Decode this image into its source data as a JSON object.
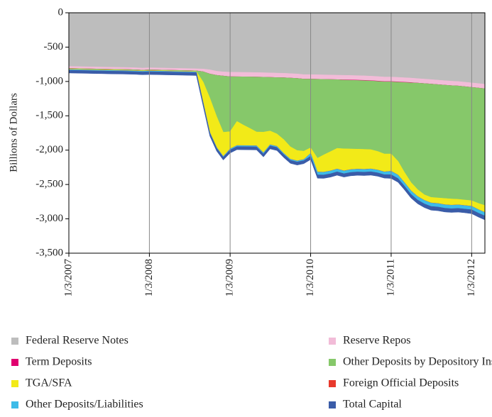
{
  "chart_data": {
    "type": "stacked_area",
    "ylabel": "Billions of Dollars",
    "x": [
      "1/3/2007",
      "2/3/2007",
      "3/3/2007",
      "4/3/2007",
      "5/3/2007",
      "6/3/2007",
      "7/3/2007",
      "8/3/2007",
      "9/3/2007",
      "10/3/2007",
      "11/3/2007",
      "12/3/2007",
      "1/3/2008",
      "2/3/2008",
      "3/3/2008",
      "4/3/2008",
      "5/3/2008",
      "6/3/2008",
      "7/3/2008",
      "8/3/2008",
      "9/3/2008",
      "10/3/2008",
      "11/3/2008",
      "12/3/2008",
      "1/3/2009",
      "2/3/2009",
      "3/3/2009",
      "4/3/2009",
      "5/3/2009",
      "6/3/2009",
      "7/3/2009",
      "8/3/2009",
      "9/3/2009",
      "10/3/2009",
      "11/3/2009",
      "12/3/2009",
      "1/3/2010",
      "2/3/2010",
      "3/3/2010",
      "4/3/2010",
      "5/3/2010",
      "6/3/2010",
      "7/3/2010",
      "8/3/2010",
      "9/3/2010",
      "10/3/2010",
      "11/3/2010",
      "12/3/2010",
      "1/3/2011",
      "2/3/2011",
      "3/3/2011",
      "4/3/2011",
      "5/3/2011",
      "6/3/2011",
      "7/3/2011",
      "8/3/2011",
      "9/3/2011",
      "10/3/2011",
      "11/3/2011",
      "12/3/2011",
      "1/3/2012",
      "2/3/2012",
      "3/3/2012"
    ],
    "xlim": [
      "1/3/2007",
      "3/3/2012"
    ],
    "xticks": [
      "1/3/2007",
      "1/3/2008",
      "1/3/2009",
      "1/3/2010",
      "1/3/2011",
      "1/3/2012"
    ],
    "ylim": [
      -3500,
      0
    ],
    "yticks": [
      0,
      -500,
      {
        "value": -1000,
        "label": "-1,000"
      },
      {
        "value": -1500,
        "label": "-1,500"
      },
      {
        "value": -2000,
        "label": "-2,000"
      },
      {
        "value": -2500,
        "label": "-2,500"
      },
      {
        "value": -3000,
        "label": "-3,000"
      },
      {
        "value": -3500,
        "label": "-3,500"
      }
    ],
    "grid": "x",
    "legend": "bottom",
    "series": [
      {
        "name": "Federal Reserve Notes",
        "color": "#bdbdbd",
        "values": [
          -780,
          -782,
          -784,
          -786,
          -788,
          -790,
          -792,
          -794,
          -795,
          -797,
          -800,
          -805,
          -800,
          -802,
          -804,
          -806,
          -808,
          -810,
          -812,
          -815,
          -818,
          -830,
          -850,
          -860,
          -865,
          -866,
          -867,
          -868,
          -870,
          -872,
          -875,
          -878,
          -880,
          -885,
          -890,
          -900,
          -900,
          -902,
          -904,
          -906,
          -908,
          -910,
          -912,
          -915,
          -918,
          -922,
          -928,
          -935,
          -935,
          -940,
          -945,
          -950,
          -958,
          -965,
          -972,
          -980,
          -988,
          -995,
          -1000,
          -1010,
          -1020,
          -1030,
          -1040
        ]
      },
      {
        "name": "Reserve Repos",
        "color": "#f2bcd8",
        "values": [
          -30,
          -30,
          -30,
          -30,
          -30,
          -30,
          -30,
          -30,
          -30,
          -30,
          -30,
          -30,
          -30,
          -30,
          -30,
          -30,
          -30,
          -30,
          -30,
          -30,
          -40,
          -60,
          -60,
          -60,
          -65,
          -65,
          -65,
          -65,
          -65,
          -65,
          -65,
          -65,
          -65,
          -65,
          -65,
          -65,
          -65,
          -65,
          -65,
          -65,
          -65,
          -65,
          -65,
          -65,
          -65,
          -65,
          -65,
          -65,
          -65,
          -65,
          -65,
          -65,
          -65,
          -65,
          -65,
          -65,
          -65,
          -65,
          -65,
          -65,
          -65,
          -65,
          -65
        ]
      },
      {
        "name": "Term Deposits",
        "color": "#e0006f",
        "values": [
          0,
          0,
          0,
          0,
          0,
          0,
          0,
          0,
          0,
          0,
          0,
          0,
          0,
          0,
          0,
          0,
          0,
          0,
          0,
          0,
          0,
          0,
          0,
          0,
          0,
          0,
          0,
          0,
          0,
          0,
          0,
          0,
          0,
          0,
          0,
          0,
          0,
          0,
          0,
          0,
          0,
          -5,
          -5,
          -5,
          -5,
          -5,
          -5,
          -5,
          -5,
          -5,
          -5,
          -5,
          0,
          0,
          0,
          0,
          0,
          0,
          0,
          0,
          0,
          0,
          0
        ]
      },
      {
        "name": "Other Deposits by Depository Institutions",
        "color": "#86c86a",
        "values": [
          -10,
          -10,
          -10,
          -10,
          -10,
          -10,
          -10,
          -10,
          -10,
          -10,
          -10,
          -10,
          -10,
          -10,
          -10,
          -10,
          -10,
          -10,
          -10,
          -10,
          -150,
          -350,
          -600,
          -820,
          -800,
          -650,
          -700,
          -750,
          -800,
          -800,
          -780,
          -820,
          -900,
          -1000,
          -1050,
          -1050,
          -1000,
          -1150,
          -1100,
          -1050,
          -1000,
          -1000,
          -1000,
          -1000,
          -1000,
          -1000,
          -1020,
          -1050,
          -1050,
          -1150,
          -1300,
          -1450,
          -1550,
          -1620,
          -1650,
          -1650,
          -1650,
          -1650,
          -1650,
          -1650,
          -1650,
          -1680,
          -1700
        ]
      },
      {
        "name": "TGA/SFA",
        "color": "#f2ea18",
        "values": [
          -5,
          -5,
          -5,
          -5,
          -5,
          -5,
          -5,
          -5,
          -5,
          -5,
          -5,
          -5,
          -5,
          -5,
          -5,
          -5,
          -5,
          -5,
          -5,
          -5,
          -300,
          -500,
          -450,
          -350,
          -250,
          -350,
          -300,
          -250,
          -200,
          -300,
          -200,
          -180,
          -200,
          -180,
          -150,
          -120,
          -80,
          -200,
          -250,
          -280,
          -300,
          -320,
          -300,
          -290,
          -290,
          -280,
          -270,
          -260,
          -250,
          -200,
          -150,
          -120,
          -100,
          -80,
          -80,
          -80,
          -90,
          -90,
          -80,
          -80,
          -80,
          -90,
          -100
        ]
      },
      {
        "name": "Foreign Official Deposits",
        "color": "#e8392c",
        "values": [
          -2,
          -2,
          -2,
          -2,
          -2,
          -2,
          -2,
          -2,
          -2,
          -2,
          -2,
          -2,
          -2,
          -2,
          -2,
          -2,
          -2,
          -2,
          -2,
          -2,
          -2,
          -2,
          -2,
          -2,
          -2,
          -2,
          -2,
          -2,
          -2,
          -2,
          -2,
          -2,
          -2,
          -2,
          -2,
          -2,
          -2,
          -2,
          -2,
          -2,
          -2,
          -2,
          -2,
          -2,
          -2,
          -2,
          -2,
          -2,
          -2,
          -2,
          -2,
          -2,
          -2,
          -2,
          -2,
          -2,
          -2,
          -2,
          -2,
          -2,
          -2,
          -2,
          -2
        ]
      },
      {
        "name": "Other Deposits/Liabilities",
        "color": "#3dbbe8",
        "values": [
          -10,
          -10,
          -10,
          -10,
          -10,
          -10,
          -10,
          -10,
          -10,
          -10,
          -10,
          -10,
          -10,
          -10,
          -10,
          -10,
          -10,
          -10,
          -10,
          -10,
          -10,
          -10,
          -10,
          -10,
          -15,
          -15,
          -15,
          -15,
          -15,
          -15,
          -15,
          -15,
          -15,
          -15,
          -15,
          -15,
          -40,
          -40,
          -40,
          -40,
          -40,
          -40,
          -40,
          -40,
          -40,
          -40,
          -40,
          -40,
          -50,
          -50,
          -50,
          -50,
          -50,
          -50,
          -50,
          -50,
          -50,
          -50,
          -50,
          -50,
          -50,
          -50,
          -50
        ]
      },
      {
        "name": "Total Capital",
        "color": "#3a5ca8",
        "values": [
          -40,
          -40,
          -40,
          -40,
          -40,
          -40,
          -40,
          -40,
          -40,
          -40,
          -40,
          -40,
          -42,
          -42,
          -42,
          -42,
          -42,
          -42,
          -42,
          -42,
          -42,
          -42,
          -42,
          -42,
          -45,
          -45,
          -45,
          -45,
          -45,
          -45,
          -45,
          -45,
          -45,
          -45,
          -45,
          -45,
          -50,
          -50,
          -50,
          -50,
          -50,
          -50,
          -50,
          -50,
          -50,
          -50,
          -50,
          -50,
          -55,
          -55,
          -55,
          -55,
          -55,
          -55,
          -55,
          -55,
          -55,
          -55,
          -55,
          -55,
          -58,
          -58,
          -58
        ]
      }
    ]
  }
}
